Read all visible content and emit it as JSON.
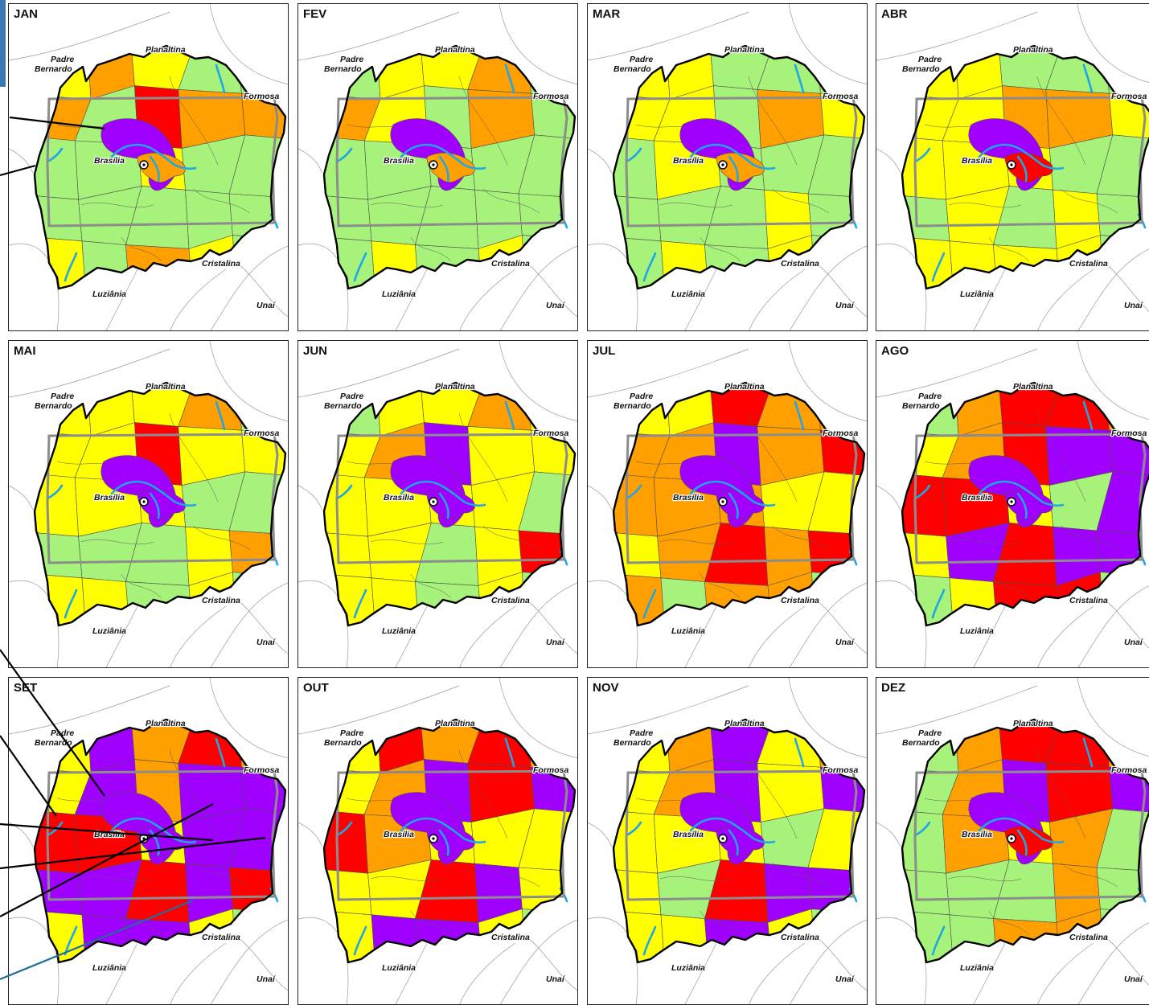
{
  "months": [
    "JAN",
    "FEV",
    "MAR",
    "ABR",
    "MAI",
    "JUN",
    "JUL",
    "AGO",
    "SET",
    "OUT",
    "NOV",
    "DEZ"
  ],
  "cities": {
    "padre": "Padre",
    "bernardo": "Bernardo",
    "planaltina": "Planaltina",
    "formosa": "Formosa",
    "brasilia": "Brasília",
    "cristalina": "Cristalina",
    "luziania": "Luziânia",
    "unai": "Unaí"
  },
  "colors": {
    "green": "#a6f27a",
    "yellow": "#ffff00",
    "orange": "#ff9f00",
    "red": "#ff0000",
    "purple": "#9f00ff",
    "water": "#1ea6e6",
    "df_border": "#8c8c8c",
    "basin_border": "#000000"
  },
  "maps": [
    {
      "cols": [
        "yellow",
        "orange",
        "yellow",
        "green",
        "green",
        "orange",
        "green",
        "red",
        "orange",
        "orange",
        "green",
        "green",
        "yellow",
        "green",
        "green",
        "green",
        "green",
        "green",
        "green",
        "green",
        "yellow",
        "green",
        "orange",
        "yellow",
        "green"
      ],
      "core": "purple",
      "center": "orange"
    },
    {
      "cols": [
        "green",
        "yellow",
        "yellow",
        "orange",
        "green",
        "orange",
        "yellow",
        "green",
        "orange",
        "green",
        "green",
        "green",
        "green",
        "green",
        "green",
        "green",
        "green",
        "green",
        "green",
        "green",
        "green",
        "yellow",
        "green",
        "yellow",
        "green"
      ],
      "core": "purple",
      "center": "orange"
    },
    {
      "cols": [
        "yellow",
        "yellow",
        "green",
        "green",
        "green",
        "yellow",
        "yellow",
        "green",
        "orange",
        "yellow",
        "green",
        "yellow",
        "green",
        "green",
        "green",
        "green",
        "green",
        "green",
        "yellow",
        "green",
        "green",
        "yellow",
        "green",
        "yellow",
        "green"
      ],
      "core": "purple",
      "center": "orange"
    },
    {
      "cols": [
        "yellow",
        "yellow",
        "green",
        "green",
        "green",
        "yellow",
        "yellow",
        "orange",
        "orange",
        "yellow",
        "yellow",
        "yellow",
        "yellow",
        "green",
        "green",
        "green",
        "yellow",
        "green",
        "yellow",
        "green",
        "yellow",
        "yellow",
        "yellow",
        "yellow",
        "green"
      ],
      "core": "purple",
      "center": "red"
    },
    {
      "cols": [
        "yellow",
        "yellow",
        "yellow",
        "orange",
        "green",
        "yellow",
        "yellow",
        "red",
        "yellow",
        "yellow",
        "yellow",
        "yellow",
        "yellow",
        "green",
        "green",
        "green",
        "green",
        "green",
        "yellow",
        "orange",
        "yellow",
        "yellow",
        "green",
        "yellow",
        "green"
      ],
      "core": "purple",
      "center": "purple"
    },
    {
      "cols": [
        "green",
        "yellow",
        "yellow",
        "orange",
        "yellow",
        "yellow",
        "orange",
        "purple",
        "yellow",
        "yellow",
        "yellow",
        "yellow",
        "yellow",
        "yellow",
        "green",
        "yellow",
        "yellow",
        "green",
        "yellow",
        "red",
        "yellow",
        "yellow",
        "green",
        "yellow",
        "green"
      ],
      "core": "purple",
      "center": "purple"
    },
    {
      "cols": [
        "yellow",
        "yellow",
        "red",
        "orange",
        "orange",
        "orange",
        "orange",
        "purple",
        "orange",
        "red",
        "orange",
        "orange",
        "orange",
        "yellow",
        "yellow",
        "yellow",
        "orange",
        "red",
        "orange",
        "red",
        "orange",
        "green",
        "orange",
        "orange",
        "green"
      ],
      "core": "purple",
      "center": "purple"
    },
    {
      "cols": [
        "green",
        "orange",
        "red",
        "red",
        "orange",
        "yellow",
        "orange",
        "red",
        "purple",
        "purple",
        "red",
        "red",
        "yellow",
        "green",
        "purple",
        "yellow",
        "purple",
        "red",
        "purple",
        "purple",
        "green",
        "yellow",
        "red",
        "red",
        "green"
      ],
      "core": "purple",
      "center": "purple"
    },
    {
      "cols": [
        "yellow",
        "purple",
        "orange",
        "red",
        "orange",
        "yellow",
        "purple",
        "orange",
        "purple",
        "purple",
        "red",
        "red",
        "yellow",
        "purple",
        "purple",
        "purple",
        "purple",
        "red",
        "purple",
        "red",
        "yellow",
        "purple",
        "purple",
        "yellow",
        "green"
      ],
      "core": "purple",
      "center": "purple"
    },
    {
      "cols": [
        "yellow",
        "red",
        "orange",
        "red",
        "orange",
        "yellow",
        "orange",
        "purple",
        "red",
        "purple",
        "red",
        "orange",
        "yellow",
        "yellow",
        "yellow",
        "yellow",
        "yellow",
        "red",
        "purple",
        "yellow",
        "yellow",
        "purple",
        "purple",
        "yellow",
        "green"
      ],
      "core": "purple",
      "center": "purple"
    },
    {
      "cols": [
        "yellow",
        "orange",
        "purple",
        "yellow",
        "orange",
        "yellow",
        "orange",
        "purple",
        "yellow",
        "purple",
        "yellow",
        "yellow",
        "yellow",
        "green",
        "yellow",
        "yellow",
        "green",
        "red",
        "purple",
        "purple",
        "yellow",
        "yellow",
        "purple",
        "yellow",
        "green"
      ],
      "core": "purple",
      "center": "purple"
    },
    {
      "cols": [
        "green",
        "orange",
        "red",
        "red",
        "orange",
        "green",
        "orange",
        "purple",
        "red",
        "purple",
        "green",
        "orange",
        "yellow",
        "orange",
        "green",
        "green",
        "green",
        "green",
        "orange",
        "green",
        "green",
        "green",
        "orange",
        "orange",
        "green"
      ],
      "core": "purple",
      "center": "red"
    }
  ]
}
